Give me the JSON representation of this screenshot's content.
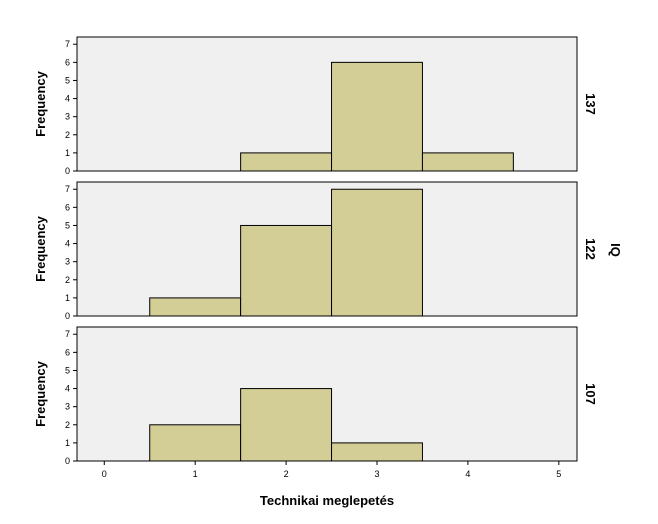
{
  "chart_data": {
    "type": "bar",
    "subtype": "paneled-histogram",
    "title": "",
    "xlabel": "Technikai meglepetés",
    "ylabel": "Frequency",
    "row_variable": "IQ",
    "xlim": [
      -0.3,
      5.2
    ],
    "x_ticks": [
      "0",
      "1",
      "2",
      "3",
      "4",
      "5"
    ],
    "ylim": [
      0,
      7.4
    ],
    "y_ticks": [
      "0",
      "1",
      "2",
      "3",
      "4",
      "5",
      "6",
      "7"
    ],
    "bins": [
      {
        "from": 0.5,
        "to": 1.5
      },
      {
        "from": 1.5,
        "to": 2.5
      },
      {
        "from": 2.5,
        "to": 3.5
      },
      {
        "from": 3.5,
        "to": 4.5
      }
    ],
    "panels": [
      {
        "label": "137",
        "values": [
          0,
          1,
          6,
          1
        ]
      },
      {
        "label": "122",
        "values": [
          1,
          5,
          7,
          0
        ]
      },
      {
        "label": "107",
        "values": [
          2,
          4,
          1,
          0
        ]
      }
    ],
    "bar_color": "#d3cd96",
    "panel_background": "#f0f0f0",
    "grid": false
  }
}
